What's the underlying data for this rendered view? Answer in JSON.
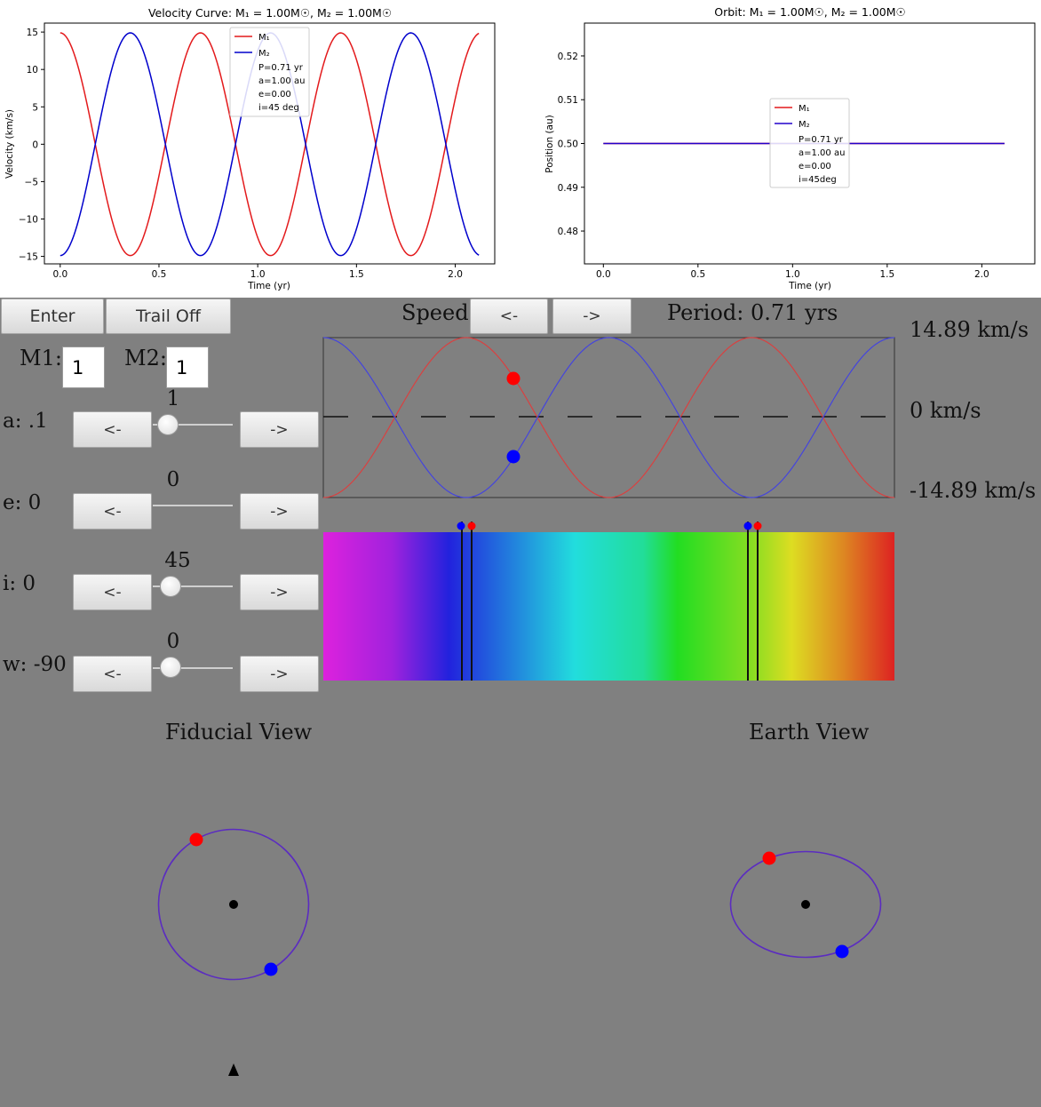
{
  "top_plots": {
    "velocity": {
      "title": "Velocity Curve: M₁ = 1.00M☉, M₂ = 1.00M☉",
      "xlabel": "Time (yr)",
      "ylabel": "Velocity (km/s)",
      "yticks": [
        "15",
        "10",
        "5",
        "0",
        "−5",
        "−10",
        "−15"
      ],
      "xticks": [
        "0.0",
        "0.5",
        "1.0",
        "1.5",
        "2.0"
      ],
      "legend": [
        "M₁",
        "M₂",
        "P=0.71 yr",
        "a=1.00 au",
        "e=0.00",
        "i=45 deg"
      ]
    },
    "orbit": {
      "title": "Orbit: M₁ = 1.00M☉, M₂ = 1.00M☉",
      "xlabel": "Time (yr)",
      "ylabel": "Position (au)",
      "yticks": [
        "0.52",
        "0.51",
        "0.50",
        "0.49",
        "0.48"
      ],
      "xticks": [
        "0.0",
        "0.5",
        "1.0",
        "1.5",
        "2.0"
      ],
      "legend": [
        "M₁",
        "M₂",
        "P=0.71 yr",
        "a=1.00 au",
        "e=0.00",
        "i=45deg"
      ]
    }
  },
  "chart_data": [
    {
      "type": "line",
      "title": "Velocity Curve: M₁ = 1.00M☉, M₂ = 1.00M☉",
      "xlabel": "Time (yr)",
      "ylabel": "Velocity (km/s)",
      "xlim": [
        -0.08,
        2.2
      ],
      "ylim": [
        -16,
        16.2
      ],
      "period": 0.71,
      "amplitude": 14.89,
      "x_range": [
        0,
        2.12
      ],
      "series": [
        {
          "name": "M₁",
          "color": "#e31a1c",
          "formula": "14.89*cos(2*pi*t/0.71)"
        },
        {
          "name": "M₂",
          "color": "#0000cc",
          "formula": "-14.89*cos(2*pi*t/0.71)"
        }
      ]
    },
    {
      "type": "line",
      "title": "Orbit: M₁ = 1.00M₀, M₂ = 1.00M₀",
      "xlabel": "Time (yr)",
      "ylabel": "Position (au)",
      "xlim": [
        -0.1,
        2.28
      ],
      "ylim": [
        0.4725,
        0.5275
      ],
      "x": [
        0,
        2.12
      ],
      "series": [
        {
          "name": "M₁",
          "color": "#e31a1c",
          "values": [
            0.5,
            0.5
          ]
        },
        {
          "name": "M₂",
          "color": "#2200cc",
          "values": [
            0.5,
            0.5
          ]
        }
      ]
    }
  ],
  "controls": {
    "enter_label": "Enter",
    "trail_label": "Trail Off",
    "speed_label": "Speed:",
    "speed_down": "<-",
    "speed_up": "->",
    "period_text": "Period: 0.71 yrs",
    "m1_label": "M1:",
    "m1_value": "1",
    "m2_label": "M2:",
    "m2_value": "1",
    "params": [
      {
        "label": "a: .1",
        "value": "1",
        "dec": "<-",
        "inc": "->",
        "knob": true
      },
      {
        "label": "e: 0",
        "value": "0",
        "dec": "<-",
        "inc": "->",
        "knob": false
      },
      {
        "label": "i: 0",
        "value": "45",
        "dec": "<-",
        "inc": "->",
        "knob": true
      },
      {
        "label": "w: -90",
        "value": "0",
        "dec": "<-",
        "inc": "->",
        "knob": true
      }
    ]
  },
  "display": {
    "vel_max": "14.89 km/s",
    "vel_zero": "0 km/s",
    "vel_min": "-14.89 km/s",
    "fiducial_title": "Fiducial View",
    "earth_title": "Earth View"
  },
  "colors": {
    "m1": "#ff0000",
    "m2": "#0000ff",
    "orbit": "#5b2cc0",
    "background": "#808080"
  }
}
